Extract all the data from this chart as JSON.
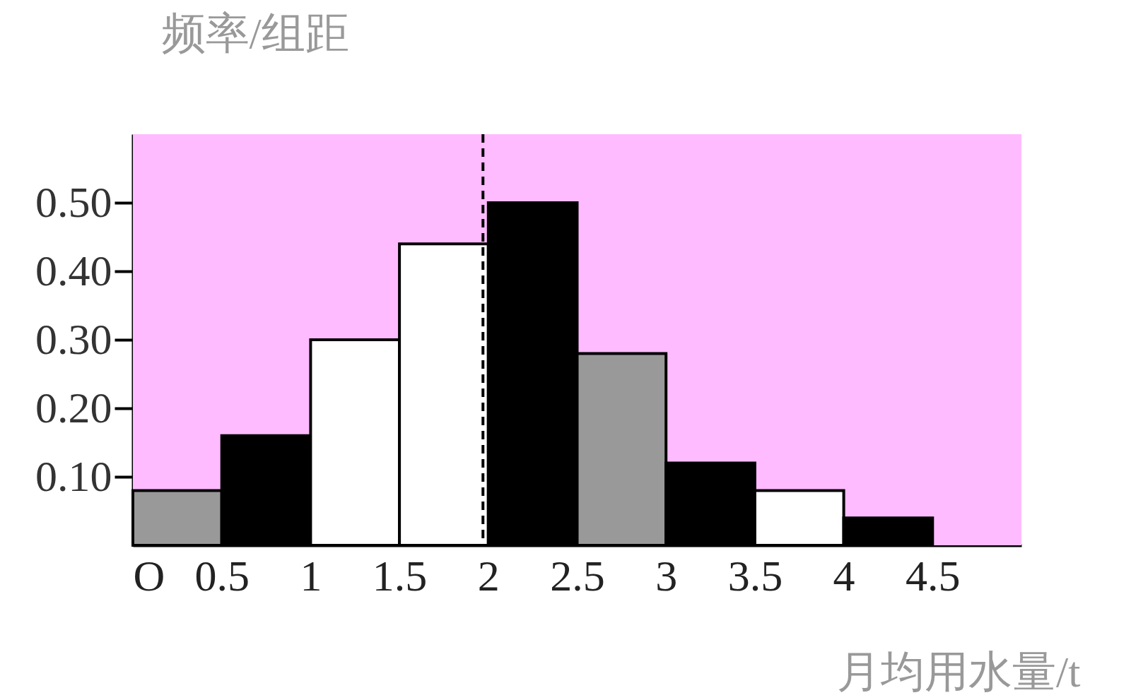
{
  "chart_data": {
    "type": "histogram",
    "xlabel": "月均用水量/t",
    "ylabel": "频率/组距",
    "bins": [
      0,
      0.5,
      1,
      1.5,
      2,
      2.5,
      3,
      3.5,
      4,
      4.5
    ],
    "values": [
      0.08,
      0.16,
      0.3,
      0.44,
      0.5,
      0.28,
      0.12,
      0.08,
      0.04
    ],
    "colors": [
      "#999999",
      "#000000",
      "#ffffff",
      "#ffffff",
      "#000000",
      "#999999",
      "#000000",
      "#ffffff",
      "#000000"
    ],
    "xlim": [
      0,
      5
    ],
    "ylim": [
      0,
      0.6
    ],
    "xticks": [
      {
        "value": 0,
        "label": "O"
      },
      0.5,
      1,
      1.5,
      2,
      2.5,
      3,
      3.5,
      4,
      4.5
    ],
    "yticks": [
      {
        "value": 0.1,
        "label": "0.10"
      },
      {
        "value": 0.2,
        "label": "0.20"
      },
      {
        "value": 0.3,
        "label": "0.30"
      },
      {
        "value": 0.4,
        "label": "0.40"
      },
      {
        "value": 0.5,
        "label": "0.50"
      }
    ],
    "bands": [
      {
        "axis": "x",
        "from": 0,
        "to": 5,
        "color": "#ffbbff"
      }
    ],
    "ref_lines": [
      {
        "axis": "x",
        "value": 1.97,
        "line_style": "dashed"
      }
    ],
    "grid": false,
    "legend": false
  }
}
